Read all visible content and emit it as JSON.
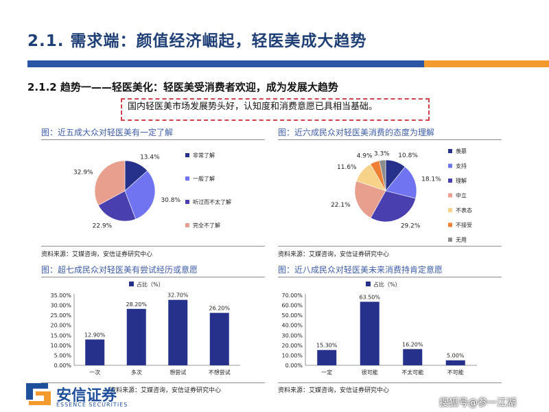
{
  "header": {
    "title": "2.1. 需求端：颜值经济崛起，轻医美成大趋势",
    "subtitle": "2.1.2 趋势一——轻医美化：轻医美受消费者欢迎，成为发展大趋势",
    "callout": "国内轻医美市场发展势头好，认知度和消费意愿已具相当基础。"
  },
  "panels": {
    "p1_title": "图：近五成大众对轻医美有一定了解",
    "p2_title": "图：近六成民众对轻医美消费的态度为理解",
    "p3_title": "图：超七成民众对轻医美有尝试经历或意愿",
    "p4_title": "图：近八成民众对轻医美未来消费持肯定意愿",
    "source": "资料来源：艾媒咨询，安信证券研究中心"
  },
  "logo": {
    "cn": "安信证券",
    "en": "ESSENCE SECURITIES"
  },
  "watermark": "搜狐号@参一江湖",
  "colors": {
    "navy": "#26318c",
    "periwinkle": "#7074f0",
    "purple": "#4a3fae",
    "salmon": "#e99f8d",
    "cream": "#f7d38a",
    "orange": "#ee8036",
    "gray": "#8c8c8c"
  },
  "chart_data": [
    {
      "type": "pie",
      "labels": [
        "非常了解",
        "一般了解",
        "听过而不太了解",
        "完全不了解"
      ],
      "values": [
        13.4,
        30.8,
        22.9,
        32.9
      ],
      "value_labels": [
        "13.4%",
        "30.8%",
        "22.9%",
        "32.9%"
      ],
      "colors": [
        "#26318c",
        "#7074f0",
        "#4a3fae",
        "#e99f8d"
      ],
      "legend": "right"
    },
    {
      "type": "pie",
      "labels": [
        "羡慕",
        "支持",
        "理解",
        "中立",
        "不表态",
        "不接受",
        "无用"
      ],
      "values": [
        10.8,
        18.1,
        29.2,
        22.1,
        11.6,
        4.9,
        3.3
      ],
      "value_labels": [
        "10.8%",
        "18.1%",
        "29.2%",
        "22.1%",
        "11.6%",
        "4.9%",
        "3.3%"
      ],
      "colors": [
        "#26318c",
        "#7074f0",
        "#4a3fae",
        "#e99f8d",
        "#f7d38a",
        "#ee8036",
        "#8c8c8c"
      ],
      "legend": "right"
    },
    {
      "type": "bar",
      "series_label": "占比（%）",
      "categories": [
        "一次",
        "多次",
        "想尝试",
        "不想尝试"
      ],
      "values": [
        12.9,
        28.2,
        32.7,
        26.2
      ],
      "value_labels": [
        "12.90%",
        "28.20%",
        "32.70%",
        "26.20%"
      ],
      "yticks": [
        "0.00%",
        "5.00%",
        "10.00%",
        "15.00%",
        "20.00%",
        "25.00%",
        "30.00%",
        "35.00%"
      ],
      "ylim": [
        0,
        35
      ],
      "color": "#26318c",
      "legend": "top"
    },
    {
      "type": "bar",
      "series_label": "占比（%）",
      "categories": [
        "一定",
        "很可能",
        "不太可能",
        "不可能"
      ],
      "values": [
        15.3,
        63.5,
        16.2,
        5.0
      ],
      "value_labels": [
        "15.30%",
        "63.50%",
        "16.20%",
        "5.00%"
      ],
      "yticks": [
        "0.00%",
        "10.00%",
        "20.00%",
        "30.00%",
        "40.00%",
        "50.00%",
        "60.00%",
        "70.00%"
      ],
      "ylim": [
        0,
        70
      ],
      "color": "#26318c",
      "legend": "top"
    }
  ]
}
